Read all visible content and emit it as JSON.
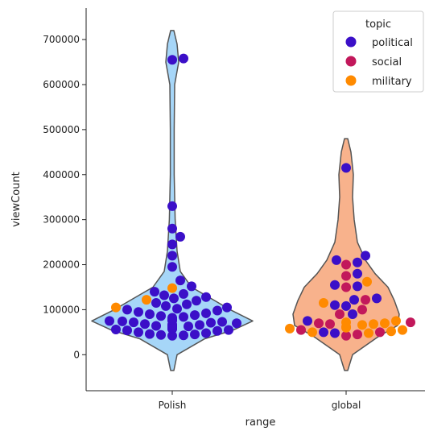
{
  "chart_data": {
    "type": "violin-swarm",
    "xlabel": "range",
    "ylabel": "viewCount",
    "categories": [
      "Polish",
      "global"
    ],
    "ylim": [
      -80000,
      770000
    ],
    "y_ticks": [
      0,
      100000,
      200000,
      300000,
      400000,
      500000,
      600000,
      700000
    ],
    "y_tick_labels": [
      "0",
      "100000",
      "200000",
      "300000",
      "400000",
      "500000",
      "600000",
      "700000"
    ],
    "violins": [
      {
        "category": "Polish",
        "fill": "#a6d6f8",
        "profile": [
          [
            -35000,
            0.01
          ],
          [
            0,
            0.03
          ],
          [
            35000,
            0.2
          ],
          [
            55000,
            0.38
          ],
          [
            75000,
            0.5
          ],
          [
            100000,
            0.36
          ],
          [
            125000,
            0.24
          ],
          [
            150000,
            0.12
          ],
          [
            185000,
            0.05
          ],
          [
            230000,
            0.03
          ],
          [
            300000,
            0.018
          ],
          [
            400000,
            0.012
          ],
          [
            500000,
            0.012
          ],
          [
            600000,
            0.015
          ],
          [
            650000,
            0.04
          ],
          [
            690000,
            0.03
          ],
          [
            720000,
            0.01
          ]
        ]
      },
      {
        "category": "global",
        "fill": "#f8b28c",
        "profile": [
          [
            -35000,
            0.01
          ],
          [
            0,
            0.04
          ],
          [
            40000,
            0.2
          ],
          [
            65000,
            0.32
          ],
          [
            90000,
            0.33
          ],
          [
            120000,
            0.3
          ],
          [
            150000,
            0.26
          ],
          [
            180000,
            0.18
          ],
          [
            210000,
            0.12
          ],
          [
            250000,
            0.07
          ],
          [
            300000,
            0.05
          ],
          [
            350000,
            0.04
          ],
          [
            400000,
            0.045
          ],
          [
            450000,
            0.03
          ],
          [
            480000,
            0.01
          ]
        ]
      }
    ],
    "legend": {
      "title": "topic",
      "position": "top-right",
      "entries": [
        {
          "label": "political",
          "color": "#3b0fc8"
        },
        {
          "label": "social",
          "color": "#c2185b"
        },
        {
          "label": "military",
          "color": "#ff8a00"
        }
      ]
    },
    "series": [
      {
        "name": "political",
        "color": "#3b0fc8",
        "points": [
          {
            "x": "Polish",
            "y": 658000
          },
          {
            "x": "Polish",
            "y": 655000
          },
          {
            "x": "Polish",
            "y": 330000
          },
          {
            "x": "Polish",
            "y": 280000
          },
          {
            "x": "Polish",
            "y": 262000
          },
          {
            "x": "Polish",
            "y": 245000
          },
          {
            "x": "Polish",
            "y": 220000
          },
          {
            "x": "Polish",
            "y": 195000
          },
          {
            "x": "Polish",
            "y": 165000
          },
          {
            "x": "Polish",
            "y": 152000
          },
          {
            "x": "Polish",
            "y": 140000
          },
          {
            "x": "Polish",
            "y": 135000
          },
          {
            "x": "Polish",
            "y": 132000
          },
          {
            "x": "Polish",
            "y": 128000
          },
          {
            "x": "Polish",
            "y": 125000
          },
          {
            "x": "Polish",
            "y": 120000
          },
          {
            "x": "Polish",
            "y": 115000
          },
          {
            "x": "Polish",
            "y": 112000
          },
          {
            "x": "Polish",
            "y": 108000
          },
          {
            "x": "Polish",
            "y": 105000
          },
          {
            "x": "Polish",
            "y": 102000
          },
          {
            "x": "Polish",
            "y": 100000
          },
          {
            "x": "Polish",
            "y": 98000
          },
          {
            "x": "Polish",
            "y": 95000
          },
          {
            "x": "Polish",
            "y": 92000
          },
          {
            "x": "Polish",
            "y": 90000
          },
          {
            "x": "Polish",
            "y": 88000
          },
          {
            "x": "Polish",
            "y": 86000
          },
          {
            "x": "Polish",
            "y": 84000
          },
          {
            "x": "Polish",
            "y": 82000
          },
          {
            "x": "Polish",
            "y": 80000
          },
          {
            "x": "Polish",
            "y": 79000
          },
          {
            "x": "Polish",
            "y": 78000
          },
          {
            "x": "Polish",
            "y": 77000
          },
          {
            "x": "Polish",
            "y": 76000
          },
          {
            "x": "Polish",
            "y": 75000
          },
          {
            "x": "Polish",
            "y": 74000
          },
          {
            "x": "Polish",
            "y": 73000
          },
          {
            "x": "Polish",
            "y": 72000
          },
          {
            "x": "Polish",
            "y": 71000
          },
          {
            "x": "Polish",
            "y": 70000
          },
          {
            "x": "Polish",
            "y": 68000
          },
          {
            "x": "Polish",
            "y": 67000
          },
          {
            "x": "Polish",
            "y": 66000
          },
          {
            "x": "Polish",
            "y": 65000
          },
          {
            "x": "Polish",
            "y": 64000
          },
          {
            "x": "Polish",
            "y": 63000
          },
          {
            "x": "Polish",
            "y": 62000
          },
          {
            "x": "Polish",
            "y": 61000
          },
          {
            "x": "Polish",
            "y": 60000
          },
          {
            "x": "Polish",
            "y": 60000
          },
          {
            "x": "Polish",
            "y": 59000
          },
          {
            "x": "Polish",
            "y": 58000
          },
          {
            "x": "Polish",
            "y": 57000
          },
          {
            "x": "Polish",
            "y": 56000
          },
          {
            "x": "Polish",
            "y": 55000
          },
          {
            "x": "Polish",
            "y": 54000
          },
          {
            "x": "Polish",
            "y": 53000
          },
          {
            "x": "Polish",
            "y": 50000
          },
          {
            "x": "Polish",
            "y": 48000
          },
          {
            "x": "Polish",
            "y": 46000
          },
          {
            "x": "Polish",
            "y": 45000
          },
          {
            "x": "Polish",
            "y": 44000
          },
          {
            "x": "Polish",
            "y": 43000
          },
          {
            "x": "Polish",
            "y": 42000
          },
          {
            "x": "global",
            "y": 415000
          },
          {
            "x": "global",
            "y": 220000
          },
          {
            "x": "global",
            "y": 210000
          },
          {
            "x": "global",
            "y": 205000
          },
          {
            "x": "global",
            "y": 180000
          },
          {
            "x": "global",
            "y": 155000
          },
          {
            "x": "global",
            "y": 152000
          },
          {
            "x": "global",
            "y": 125000
          },
          {
            "x": "global",
            "y": 122000
          },
          {
            "x": "global",
            "y": 110000
          },
          {
            "x": "global",
            "y": 108000
          },
          {
            "x": "global",
            "y": 90000
          },
          {
            "x": "global",
            "y": 75000
          },
          {
            "x": "global",
            "y": 50000
          },
          {
            "x": "global",
            "y": 48000
          }
        ]
      },
      {
        "name": "social",
        "color": "#c2185b",
        "points": [
          {
            "x": "global",
            "y": 200000
          },
          {
            "x": "global",
            "y": 175000
          },
          {
            "x": "global",
            "y": 150000
          },
          {
            "x": "global",
            "y": 122000
          },
          {
            "x": "global",
            "y": 100000
          },
          {
            "x": "global",
            "y": 90000
          },
          {
            "x": "global",
            "y": 72000
          },
          {
            "x": "global",
            "y": 70000
          },
          {
            "x": "global",
            "y": 68000
          },
          {
            "x": "global",
            "y": 55000
          },
          {
            "x": "global",
            "y": 50000
          },
          {
            "x": "global",
            "y": 45000
          },
          {
            "x": "global",
            "y": 42000
          }
        ]
      },
      {
        "name": "military",
        "color": "#ff8a00",
        "points": [
          {
            "x": "Polish",
            "y": 148000
          },
          {
            "x": "Polish",
            "y": 122000
          },
          {
            "x": "Polish",
            "y": 105000
          },
          {
            "x": "global",
            "y": 162000
          },
          {
            "x": "global",
            "y": 115000
          },
          {
            "x": "global",
            "y": 75000
          },
          {
            "x": "global",
            "y": 72000
          },
          {
            "x": "global",
            "y": 70000
          },
          {
            "x": "global",
            "y": 68000
          },
          {
            "x": "global",
            "y": 66000
          },
          {
            "x": "global",
            "y": 62000
          },
          {
            "x": "global",
            "y": 60000
          },
          {
            "x": "global",
            "y": 58000
          },
          {
            "x": "global",
            "y": 55000
          },
          {
            "x": "global",
            "y": 52000
          },
          {
            "x": "global",
            "y": 50000
          },
          {
            "x": "global",
            "y": 48000
          }
        ]
      }
    ]
  }
}
